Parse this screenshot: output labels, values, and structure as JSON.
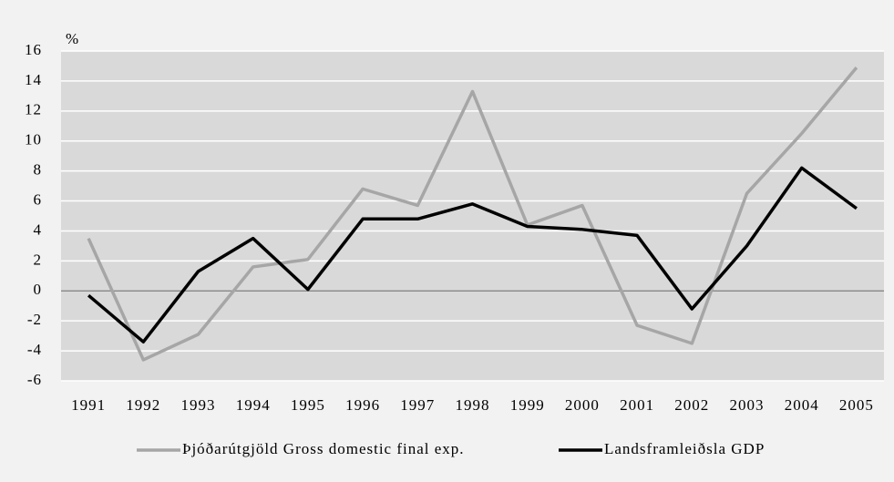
{
  "chart_data": {
    "type": "line",
    "y_label": "%",
    "categories": [
      "1991",
      "1992",
      "1993",
      "1994",
      "1995",
      "1996",
      "1997",
      "1998",
      "1999",
      "2000",
      "2001",
      "2002",
      "2003",
      "2004",
      "2005"
    ],
    "series": [
      {
        "name": "Þjóðarútgjöld Gross domestic final exp.",
        "color": "#a6a6a6",
        "values": [
          3.5,
          -4.6,
          -2.9,
          1.6,
          2.1,
          6.8,
          5.7,
          13.3,
          4.4,
          5.7,
          -2.3,
          -3.5,
          6.5,
          10.5,
          14.9
        ]
      },
      {
        "name": "Landsframleiðsla GDP",
        "color": "#000000",
        "values": [
          -0.3,
          -3.4,
          1.3,
          3.5,
          0.1,
          4.8,
          4.8,
          5.8,
          4.3,
          4.1,
          3.7,
          -1.2,
          3.0,
          8.2,
          5.5
        ]
      }
    ],
    "ylim": [
      -6,
      16
    ],
    "yticks": [
      -6,
      -4,
      -2,
      0,
      2,
      4,
      6,
      8,
      10,
      12,
      14,
      16
    ],
    "grid": true,
    "legend": "bottom"
  }
}
